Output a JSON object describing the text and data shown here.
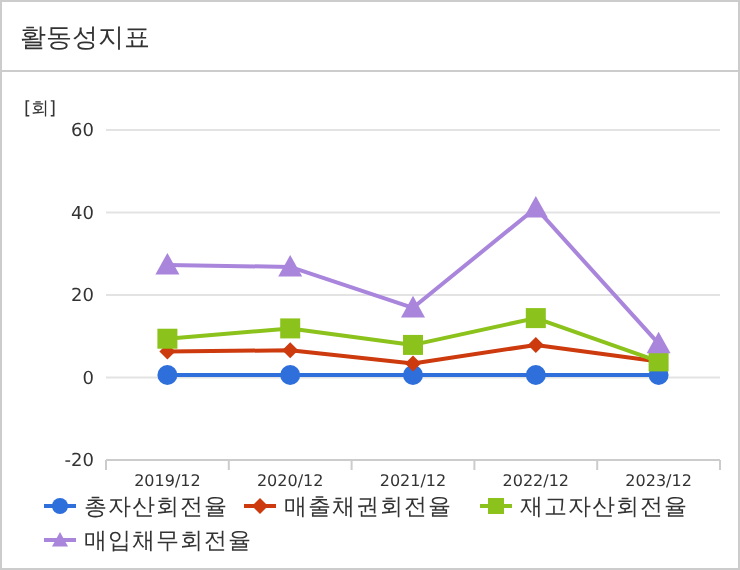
{
  "chart_data": {
    "type": "line",
    "title": "활동성지표",
    "ylabel": "[회]",
    "categories": [
      "2019/12",
      "2020/12",
      "2021/12",
      "2022/12",
      "2023/12"
    ],
    "ylim": [
      -20,
      60
    ],
    "yticks": [
      -20,
      0,
      20,
      40,
      60
    ],
    "grid": "y",
    "legend": "bottom",
    "series": [
      {
        "name": "총자산회전율",
        "color": "#2f6fdc",
        "marker": "circle",
        "values": [
          0.6,
          0.6,
          0.6,
          0.6,
          0.6
        ]
      },
      {
        "name": "매출채권회전율",
        "color": "#cc3a0e",
        "marker": "diamond",
        "values": [
          6.3,
          6.6,
          3.4,
          7.9,
          3.9
        ]
      },
      {
        "name": "재고자산회전율",
        "color": "#8cc21c",
        "marker": "square",
        "values": [
          9.4,
          11.9,
          7.9,
          14.4,
          3.9
        ]
      },
      {
        "name": "매입채무회전율",
        "color": "#a986dc",
        "marker": "triangle",
        "values": [
          27.3,
          26.8,
          16.9,
          41.1,
          8.2
        ]
      }
    ]
  }
}
